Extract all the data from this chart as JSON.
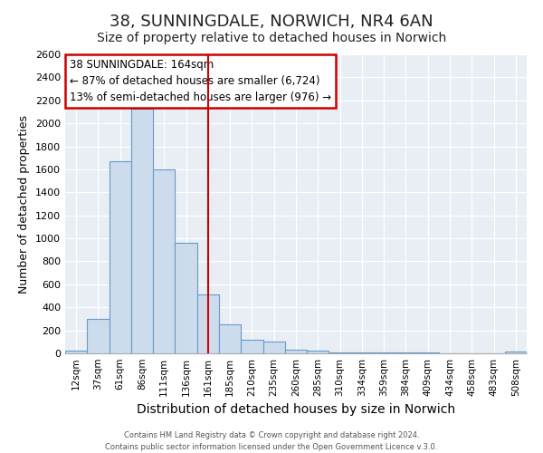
{
  "title": "38, SUNNINGDALE, NORWICH, NR4 6AN",
  "subtitle": "Size of property relative to detached houses in Norwich",
  "xlabel": "Distribution of detached houses by size in Norwich",
  "ylabel": "Number of detached properties",
  "bar_labels": [
    "12sqm",
    "37sqm",
    "61sqm",
    "86sqm",
    "111sqm",
    "136sqm",
    "161sqm",
    "185sqm",
    "210sqm",
    "235sqm",
    "260sqm",
    "285sqm",
    "310sqm",
    "334sqm",
    "359sqm",
    "384sqm",
    "409sqm",
    "434sqm",
    "458sqm",
    "483sqm",
    "508sqm"
  ],
  "bar_values": [
    20,
    300,
    1670,
    2130,
    1600,
    960,
    510,
    255,
    120,
    100,
    35,
    20,
    10,
    5,
    5,
    5,
    5,
    3,
    3,
    3,
    15
  ],
  "bar_color": "#ccdcec",
  "bar_edge_color": "#6699cc",
  "vline_x_index": 6,
  "vline_color": "#cc0000",
  "ylim": [
    0,
    2600
  ],
  "yticks": [
    0,
    200,
    400,
    600,
    800,
    1000,
    1200,
    1400,
    1600,
    1800,
    2000,
    2200,
    2400,
    2600
  ],
  "annotation_title": "38 SUNNINGDALE: 164sqm",
  "annotation_line1": "← 87% of detached houses are smaller (6,724)",
  "annotation_line2": "13% of semi-detached houses are larger (976) →",
  "annotation_box_color": "#cc0000",
  "footer_line1": "Contains HM Land Registry data © Crown copyright and database right 2024.",
  "footer_line2": "Contains public sector information licensed under the Open Government Licence v.3.0.",
  "background_color": "#ffffff",
  "plot_bg_color": "#e8eef4",
  "grid_color": "#ffffff",
  "title_fontsize": 13,
  "subtitle_fontsize": 10,
  "ylabel_fontsize": 9,
  "xlabel_fontsize": 10
}
